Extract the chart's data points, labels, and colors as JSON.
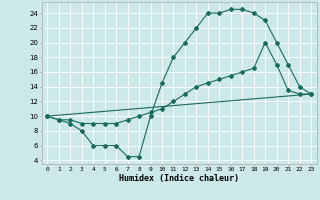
{
  "xlabel": "Humidex (Indice chaleur)",
  "bg_color": "#cce8e8",
  "line_color": "#1a6b5a",
  "grid_color": "#ffffff",
  "xlim": [
    -0.5,
    23.5
  ],
  "ylim": [
    3.5,
    25.5
  ],
  "yticks": [
    4,
    6,
    8,
    10,
    12,
    14,
    16,
    18,
    20,
    22,
    24
  ],
  "xticks": [
    0,
    1,
    2,
    3,
    4,
    5,
    6,
    7,
    8,
    9,
    10,
    11,
    12,
    13,
    14,
    15,
    16,
    17,
    18,
    19,
    20,
    21,
    22,
    23
  ],
  "curve1_x": [
    0,
    1,
    2,
    3,
    4,
    5,
    6,
    7,
    8,
    9,
    10,
    11,
    12,
    13,
    14,
    15,
    16,
    17,
    18,
    19,
    20,
    21,
    22,
    23
  ],
  "curve1_y": [
    10,
    9.5,
    9,
    8,
    6,
    6,
    6,
    4.5,
    4.5,
    10,
    14.5,
    18,
    20,
    22,
    24,
    24,
    24.5,
    24.5,
    24,
    23,
    20,
    17,
    14,
    13
  ],
  "curve2_x": [
    0,
    1,
    2,
    3,
    4,
    5,
    6,
    7,
    8,
    9,
    10,
    11,
    12,
    13,
    14,
    15,
    16,
    17,
    18,
    19,
    20,
    21,
    22,
    23
  ],
  "curve2_y": [
    10,
    9.5,
    9.5,
    9,
    9,
    9,
    9,
    9.5,
    10,
    10.5,
    11,
    12,
    13,
    14,
    14.5,
    15,
    15.5,
    16,
    16.5,
    20,
    17,
    13.5,
    13,
    13
  ],
  "curve3_x": [
    0,
    23
  ],
  "curve3_y": [
    10,
    13
  ]
}
